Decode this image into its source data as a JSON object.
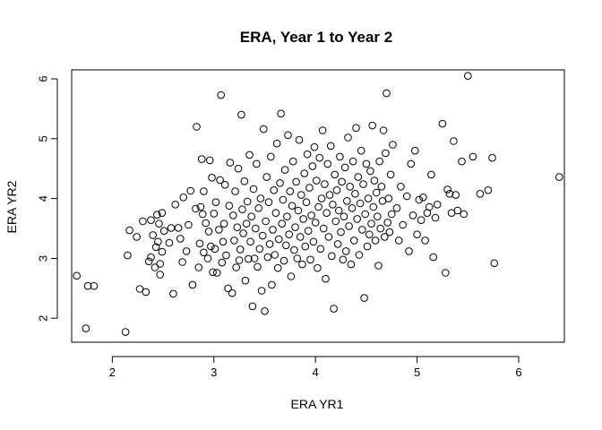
{
  "chart_data": {
    "type": "scatter",
    "title": "ERA, Year 1 to Year 2",
    "xlabel": "ERA YR1",
    "ylabel": "ERA YR2",
    "xlim": [
      1.6,
      6.45
    ],
    "ylim": [
      1.6,
      6.15
    ],
    "xticks": [
      "2",
      "3",
      "4",
      "5",
      "6"
    ],
    "yticks": [
      "2",
      "3",
      "4",
      "5",
      "6"
    ],
    "grid": false,
    "legend": "none",
    "marker": "open-circle",
    "color": "#000000",
    "points": [
      [
        1.65,
        2.71
      ],
      [
        1.74,
        1.83
      ],
      [
        1.76,
        2.54
      ],
      [
        1.82,
        2.54
      ],
      [
        2.13,
        1.77
      ],
      [
        2.15,
        3.05
      ],
      [
        2.17,
        3.47
      ],
      [
        2.24,
        3.36
      ],
      [
        2.27,
        2.49
      ],
      [
        2.3,
        3.62
      ],
      [
        2.33,
        2.44
      ],
      [
        2.36,
        2.95
      ],
      [
        2.38,
        3.02
      ],
      [
        2.38,
        3.64
      ],
      [
        2.4,
        3.39
      ],
      [
        2.42,
        2.85
      ],
      [
        2.43,
        3.19
      ],
      [
        2.44,
        3.73
      ],
      [
        2.45,
        3.28
      ],
      [
        2.46,
        3.58
      ],
      [
        2.47,
        2.73
      ],
      [
        2.47,
        2.91
      ],
      [
        2.49,
        3.11
      ],
      [
        2.49,
        3.76
      ],
      [
        2.51,
        3.46
      ],
      [
        2.56,
        3.26
      ],
      [
        2.58,
        3.51
      ],
      [
        2.6,
        2.41
      ],
      [
        2.62,
        3.9
      ],
      [
        2.65,
        3.51
      ],
      [
        2.67,
        3.33
      ],
      [
        2.69,
        2.94
      ],
      [
        2.7,
        4.02
      ],
      [
        2.73,
        3.12
      ],
      [
        2.75,
        3.56
      ],
      [
        2.77,
        4.13
      ],
      [
        2.79,
        2.56
      ],
      [
        2.82,
        3.83
      ],
      [
        2.83,
        5.2
      ],
      [
        2.85,
        2.85
      ],
      [
        2.86,
        3.25
      ],
      [
        2.87,
        3.86
      ],
      [
        2.88,
        4.66
      ],
      [
        2.89,
        3.74
      ],
      [
        2.9,
        3.1
      ],
      [
        2.9,
        4.12
      ],
      [
        2.92,
        3.59
      ],
      [
        2.94,
        3.0
      ],
      [
        2.95,
        3.45
      ],
      [
        2.96,
        4.64
      ],
      [
        2.97,
        3.2
      ],
      [
        2.98,
        4.35
      ],
      [
        2.99,
        2.77
      ],
      [
        3.0,
        3.75
      ],
      [
        3.01,
        3.16
      ],
      [
        3.02,
        3.94
      ],
      [
        3.03,
        2.76
      ],
      [
        3.05,
        3.48
      ],
      [
        3.06,
        4.31
      ],
      [
        3.07,
        5.73
      ],
      [
        3.08,
        2.93
      ],
      [
        3.09,
        3.28
      ],
      [
        3.1,
        3.58
      ],
      [
        3.11,
        4.23
      ],
      [
        3.12,
        3.05
      ],
      [
        3.14,
        2.5
      ],
      [
        3.15,
        3.88
      ],
      [
        3.16,
        4.6
      ],
      [
        3.18,
        2.42
      ],
      [
        3.19,
        3.72
      ],
      [
        3.2,
        3.3
      ],
      [
        3.21,
        4.12
      ],
      [
        3.22,
        2.85
      ],
      [
        3.23,
        3.52
      ],
      [
        3.24,
        4.5
      ],
      [
        3.25,
        2.97
      ],
      [
        3.26,
        3.15
      ],
      [
        3.27,
        5.4
      ],
      [
        3.28,
        3.82
      ],
      [
        3.29,
        3.42
      ],
      [
        3.3,
        4.29
      ],
      [
        3.31,
        2.63
      ],
      [
        3.32,
        3.58
      ],
      [
        3.33,
        3.95
      ],
      [
        3.34,
        2.99
      ],
      [
        3.35,
        4.73
      ],
      [
        3.36,
        3.28
      ],
      [
        3.37,
        3.7
      ],
      [
        3.38,
        2.2
      ],
      [
        3.39,
        4.16
      ],
      [
        3.4,
        3.0
      ],
      [
        3.41,
        3.5
      ],
      [
        3.42,
        4.58
      ],
      [
        3.43,
        2.86
      ],
      [
        3.44,
        3.84
      ],
      [
        3.45,
        3.16
      ],
      [
        3.46,
        4.0
      ],
      [
        3.47,
        2.46
      ],
      [
        3.48,
        3.38
      ],
      [
        3.49,
        5.16
      ],
      [
        3.5,
        2.12
      ],
      [
        3.51,
        3.62
      ],
      [
        3.52,
        4.36
      ],
      [
        3.53,
        3.02
      ],
      [
        3.54,
        3.94
      ],
      [
        3.55,
        3.24
      ],
      [
        3.56,
        4.7
      ],
      [
        3.57,
        2.56
      ],
      [
        3.58,
        3.48
      ],
      [
        3.59,
        4.14
      ],
      [
        3.6,
        3.06
      ],
      [
        3.61,
        3.76
      ],
      [
        3.62,
        4.92
      ],
      [
        3.63,
        2.84
      ],
      [
        3.64,
        3.32
      ],
      [
        3.65,
        4.26
      ],
      [
        3.66,
        5.42
      ],
      [
        3.67,
        3.58
      ],
      [
        3.68,
        3.98
      ],
      [
        3.69,
        2.96
      ],
      [
        3.7,
        4.48
      ],
      [
        3.71,
        3.22
      ],
      [
        3.72,
        3.7
      ],
      [
        3.73,
        5.06
      ],
      [
        3.74,
        3.4
      ],
      [
        3.75,
        4.12
      ],
      [
        3.76,
        2.7
      ],
      [
        3.77,
        3.88
      ],
      [
        3.78,
        4.62
      ],
      [
        3.79,
        3.14
      ],
      [
        3.8,
        3.52
      ],
      [
        3.81,
        4.28
      ],
      [
        3.82,
        3.0
      ],
      [
        3.83,
        3.8
      ],
      [
        3.84,
        4.98
      ],
      [
        3.85,
        3.36
      ],
      [
        3.86,
        4.06
      ],
      [
        3.87,
        2.9
      ],
      [
        3.88,
        3.66
      ],
      [
        3.89,
        4.42
      ],
      [
        3.9,
        3.2
      ],
      [
        3.91,
        3.94
      ],
      [
        3.92,
        4.74
      ],
      [
        3.93,
        3.46
      ],
      [
        3.94,
        4.18
      ],
      [
        3.95,
        2.98
      ],
      [
        3.96,
        3.72
      ],
      [
        3.97,
        4.54
      ],
      [
        3.98,
        3.28
      ],
      [
        3.99,
        4.86
      ],
      [
        4.0,
        3.6
      ],
      [
        4.01,
        4.3
      ],
      [
        4.02,
        2.84
      ],
      [
        4.03,
        3.86
      ],
      [
        4.04,
        4.68
      ],
      [
        4.05,
        3.16
      ],
      [
        4.06,
        4.0
      ],
      [
        4.07,
        5.14
      ],
      [
        4.08,
        3.5
      ],
      [
        4.09,
        4.24
      ],
      [
        4.1,
        2.66
      ],
      [
        4.11,
        3.76
      ],
      [
        4.12,
        4.58
      ],
      [
        4.13,
        3.36
      ],
      [
        4.14,
        4.06
      ],
      [
        4.15,
        4.88
      ],
      [
        4.16,
        3.04
      ],
      [
        4.17,
        3.9
      ],
      [
        4.18,
        2.16
      ],
      [
        4.19,
        4.4
      ],
      [
        4.2,
        3.62
      ],
      [
        4.21,
        4.14
      ],
      [
        4.22,
        3.24
      ],
      [
        4.23,
        3.8
      ],
      [
        4.24,
        4.7
      ],
      [
        4.25,
        3.44
      ],
      [
        4.26,
        4.28
      ],
      [
        4.27,
        2.98
      ],
      [
        4.28,
        3.7
      ],
      [
        4.29,
        4.52
      ],
      [
        4.3,
        3.12
      ],
      [
        4.31,
        3.96
      ],
      [
        4.32,
        5.02
      ],
      [
        4.33,
        3.54
      ],
      [
        4.34,
        4.2
      ],
      [
        4.35,
        2.9
      ],
      [
        4.36,
        3.84
      ],
      [
        4.37,
        4.62
      ],
      [
        4.38,
        3.3
      ],
      [
        4.39,
        4.08
      ],
      [
        4.4,
        5.18
      ],
      [
        4.41,
        3.66
      ],
      [
        4.42,
        4.36
      ],
      [
        4.43,
        3.06
      ],
      [
        4.44,
        3.92
      ],
      [
        4.45,
        4.8
      ],
      [
        4.46,
        3.48
      ],
      [
        4.47,
        4.24
      ],
      [
        4.48,
        2.34
      ],
      [
        4.49,
        3.74
      ],
      [
        4.5,
        4.58
      ],
      [
        4.51,
        3.2
      ],
      [
        4.52,
        4.0
      ],
      [
        4.53,
        3.4
      ],
      [
        4.54,
        4.46
      ],
      [
        4.55,
        3.58
      ],
      [
        4.56,
        5.22
      ],
      [
        4.57,
        3.86
      ],
      [
        4.58,
        4.3
      ],
      [
        4.59,
        3.3
      ],
      [
        4.6,
        4.1
      ],
      [
        4.61,
        3.7
      ],
      [
        4.62,
        2.88
      ],
      [
        4.63,
        4.62
      ],
      [
        4.64,
        3.5
      ],
      [
        4.65,
        4.2
      ],
      [
        4.66,
        3.96
      ],
      [
        4.67,
        5.14
      ],
      [
        4.68,
        3.36
      ],
      [
        4.69,
        4.76
      ],
      [
        4.7,
        5.76
      ],
      [
        4.71,
        3.6
      ],
      [
        4.72,
        4.0
      ],
      [
        4.73,
        3.44
      ],
      [
        4.74,
        4.4
      ],
      [
        4.75,
        3.74
      ],
      [
        4.76,
        4.9
      ],
      [
        4.8,
        3.84
      ],
      [
        4.82,
        3.3
      ],
      [
        4.84,
        4.2
      ],
      [
        4.86,
        3.56
      ],
      [
        4.9,
        4.04
      ],
      [
        4.92,
        3.12
      ],
      [
        4.94,
        4.58
      ],
      [
        4.96,
        3.72
      ],
      [
        4.98,
        4.8
      ],
      [
        5.0,
        3.4
      ],
      [
        5.02,
        3.98
      ],
      [
        5.04,
        3.64
      ],
      [
        5.06,
        4.02
      ],
      [
        5.08,
        3.3
      ],
      [
        5.1,
        3.76
      ],
      [
        5.12,
        3.86
      ],
      [
        5.14,
        4.4
      ],
      [
        5.16,
        3.02
      ],
      [
        5.18,
        3.68
      ],
      [
        5.2,
        3.9
      ],
      [
        5.25,
        5.25
      ],
      [
        5.28,
        2.76
      ],
      [
        5.3,
        4.15
      ],
      [
        5.32,
        4.08
      ],
      [
        5.34,
        3.76
      ],
      [
        5.36,
        4.96
      ],
      [
        5.38,
        4.06
      ],
      [
        5.4,
        3.8
      ],
      [
        5.44,
        4.62
      ],
      [
        5.46,
        3.74
      ],
      [
        5.5,
        6.05
      ],
      [
        5.55,
        4.7
      ],
      [
        5.62,
        4.08
      ],
      [
        5.7,
        4.14
      ],
      [
        5.74,
        4.68
      ],
      [
        5.76,
        2.92
      ],
      [
        6.4,
        4.36
      ]
    ]
  }
}
